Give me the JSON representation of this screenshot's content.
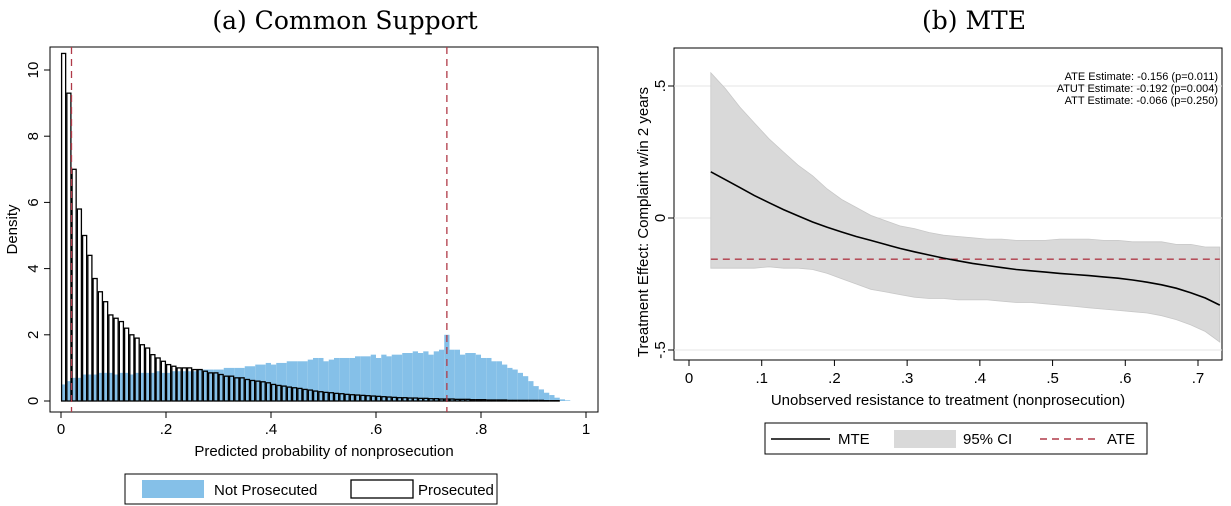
{
  "panels": {
    "a": {
      "title": "(a) Common Support"
    },
    "b": {
      "title": "(b) MTE"
    }
  },
  "colors": {
    "not_prosecuted": "#85c0e8",
    "prosecuted_edge": "#000000",
    "ci_fill": "#d9d9d9",
    "vline": "#b03a48",
    "ate_line": "#b03a48"
  },
  "chart_data": [
    {
      "type": "bar",
      "subtype": "overlaid-histogram",
      "title": "",
      "xlabel": "Predicted probability of nonprosecution",
      "ylabel": "Density",
      "xlim": [
        0,
        1
      ],
      "ylim": [
        0,
        10.5
      ],
      "xticks": [
        0,
        0.2,
        0.4,
        0.6,
        0.8,
        1
      ],
      "xtick_labels": [
        "0",
        ".2",
        ".4",
        ".6",
        ".8",
        "1"
      ],
      "yticks": [
        0,
        2,
        4,
        6,
        8,
        10
      ],
      "ytick_labels": [
        "0",
        "2",
        "4",
        "6",
        "8",
        "10"
      ],
      "bin_width": 0.01,
      "bin_start": 0.0,
      "vertical_lines": [
        0.02,
        0.735
      ],
      "legend": {
        "position": "bottom",
        "entries": [
          "Not Prosecuted",
          "Prosecuted"
        ]
      },
      "series": [
        {
          "name": "Not Prosecuted",
          "values": [
            0.5,
            0.6,
            0.7,
            0.7,
            0.8,
            0.8,
            0.8,
            0.85,
            0.85,
            0.85,
            0.8,
            0.85,
            0.85,
            0.8,
            0.85,
            0.85,
            0.85,
            0.85,
            0.9,
            0.85,
            0.85,
            0.9,
            0.9,
            0.9,
            0.9,
            0.9,
            0.95,
            0.95,
            0.95,
            0.95,
            0.95,
            1.0,
            1.0,
            1.0,
            1.0,
            1.05,
            1.05,
            1.1,
            1.1,
            1.15,
            1.1,
            1.15,
            1.15,
            1.2,
            1.2,
            1.2,
            1.2,
            1.25,
            1.3,
            1.3,
            1.2,
            1.25,
            1.3,
            1.3,
            1.3,
            1.3,
            1.35,
            1.35,
            1.35,
            1.4,
            1.3,
            1.4,
            1.35,
            1.4,
            1.4,
            1.45,
            1.45,
            1.5,
            1.45,
            1.5,
            1.4,
            1.5,
            1.55,
            2.0,
            1.55,
            1.55,
            1.4,
            1.45,
            1.45,
            1.4,
            1.3,
            1.3,
            1.2,
            1.2,
            1.1,
            1.0,
            0.95,
            0.85,
            0.75,
            0.6,
            0.45,
            0.35,
            0.25,
            0.18,
            0.1,
            0.05,
            0.02
          ]
        },
        {
          "name": "Prosecuted",
          "values": [
            10.5,
            9.3,
            7.0,
            5.8,
            5.0,
            4.4,
            3.7,
            3.3,
            3.0,
            2.6,
            2.5,
            2.4,
            2.2,
            2.0,
            1.9,
            1.7,
            1.6,
            1.4,
            1.3,
            1.2,
            1.1,
            1.05,
            1.0,
            1.0,
            1.0,
            0.95,
            0.95,
            0.9,
            0.85,
            0.85,
            0.8,
            0.75,
            0.75,
            0.7,
            0.7,
            0.65,
            0.62,
            0.6,
            0.58,
            0.55,
            0.5,
            0.47,
            0.45,
            0.42,
            0.4,
            0.38,
            0.35,
            0.33,
            0.3,
            0.28,
            0.26,
            0.25,
            0.23,
            0.22,
            0.2,
            0.19,
            0.18,
            0.17,
            0.16,
            0.15,
            0.14,
            0.13,
            0.12,
            0.11,
            0.1,
            0.1,
            0.09,
            0.09,
            0.08,
            0.08,
            0.07,
            0.07,
            0.06,
            0.06,
            0.06,
            0.05,
            0.05,
            0.05,
            0.04,
            0.04,
            0.04,
            0.03,
            0.03,
            0.03,
            0.03,
            0.02,
            0.02,
            0.02,
            0.02,
            0.02,
            0.02,
            0.02,
            0.01,
            0.01,
            0.01
          ]
        }
      ]
    },
    {
      "type": "line",
      "title": "",
      "xlabel": "Unobserved resistance to treatment (nonprosecution)",
      "ylabel": "Treatment Effect: Complaint w/in 2 years",
      "xlim": [
        0,
        0.75
      ],
      "ylim": [
        -0.5,
        0.5
      ],
      "xticks": [
        0,
        0.1,
        0.2,
        0.3,
        0.4,
        0.5,
        0.6,
        0.7
      ],
      "xtick_labels": [
        "0",
        ".1",
        ".2",
        ".3",
        ".4",
        ".5",
        ".6",
        ".7"
      ],
      "yticks": [
        -0.5,
        0,
        0.5
      ],
      "ytick_labels": [
        "-.5",
        "0",
        ".5"
      ],
      "grid": true,
      "annotations": [
        "ATE   Estimate: -0.156 (p=0.011)",
        "ATUT Estimate: -0.192 (p=0.004)",
        "ATT   Estimate: -0.066 (p=0.250)"
      ],
      "legend": {
        "position": "bottom",
        "entries": [
          "MTE",
          "95% CI",
          "ATE"
        ]
      },
      "ate_value": -0.156,
      "x": [
        0.03,
        0.05,
        0.07,
        0.09,
        0.11,
        0.13,
        0.15,
        0.17,
        0.19,
        0.21,
        0.23,
        0.25,
        0.27,
        0.29,
        0.31,
        0.33,
        0.35,
        0.37,
        0.39,
        0.41,
        0.43,
        0.45,
        0.47,
        0.49,
        0.51,
        0.53,
        0.55,
        0.57,
        0.59,
        0.61,
        0.63,
        0.65,
        0.67,
        0.69,
        0.71,
        0.73
      ],
      "series": [
        {
          "name": "MTE",
          "values": [
            0.175,
            0.145,
            0.115,
            0.085,
            0.058,
            0.032,
            0.008,
            -0.015,
            -0.035,
            -0.053,
            -0.07,
            -0.085,
            -0.1,
            -0.115,
            -0.128,
            -0.14,
            -0.152,
            -0.162,
            -0.172,
            -0.18,
            -0.188,
            -0.195,
            -0.2,
            -0.205,
            -0.21,
            -0.214,
            -0.218,
            -0.223,
            -0.228,
            -0.235,
            -0.243,
            -0.253,
            -0.266,
            -0.283,
            -0.303,
            -0.33
          ]
        },
        {
          "name": "95% CI lower",
          "values": [
            -0.19,
            -0.19,
            -0.19,
            -0.19,
            -0.185,
            -0.19,
            -0.19,
            -0.195,
            -0.21,
            -0.23,
            -0.25,
            -0.27,
            -0.28,
            -0.29,
            -0.3,
            -0.305,
            -0.305,
            -0.31,
            -0.31,
            -0.31,
            -0.315,
            -0.32,
            -0.32,
            -0.325,
            -0.33,
            -0.335,
            -0.34,
            -0.345,
            -0.35,
            -0.355,
            -0.36,
            -0.37,
            -0.385,
            -0.405,
            -0.43,
            -0.47
          ]
        },
        {
          "name": "95% CI upper",
          "values": [
            0.55,
            0.49,
            0.42,
            0.36,
            0.3,
            0.25,
            0.2,
            0.16,
            0.11,
            0.07,
            0.04,
            0.01,
            -0.01,
            -0.03,
            -0.04,
            -0.055,
            -0.065,
            -0.07,
            -0.075,
            -0.08,
            -0.08,
            -0.085,
            -0.085,
            -0.085,
            -0.08,
            -0.08,
            -0.08,
            -0.085,
            -0.085,
            -0.09,
            -0.09,
            -0.09,
            -0.1,
            -0.1,
            -0.11,
            -0.11
          ]
        }
      ]
    }
  ]
}
